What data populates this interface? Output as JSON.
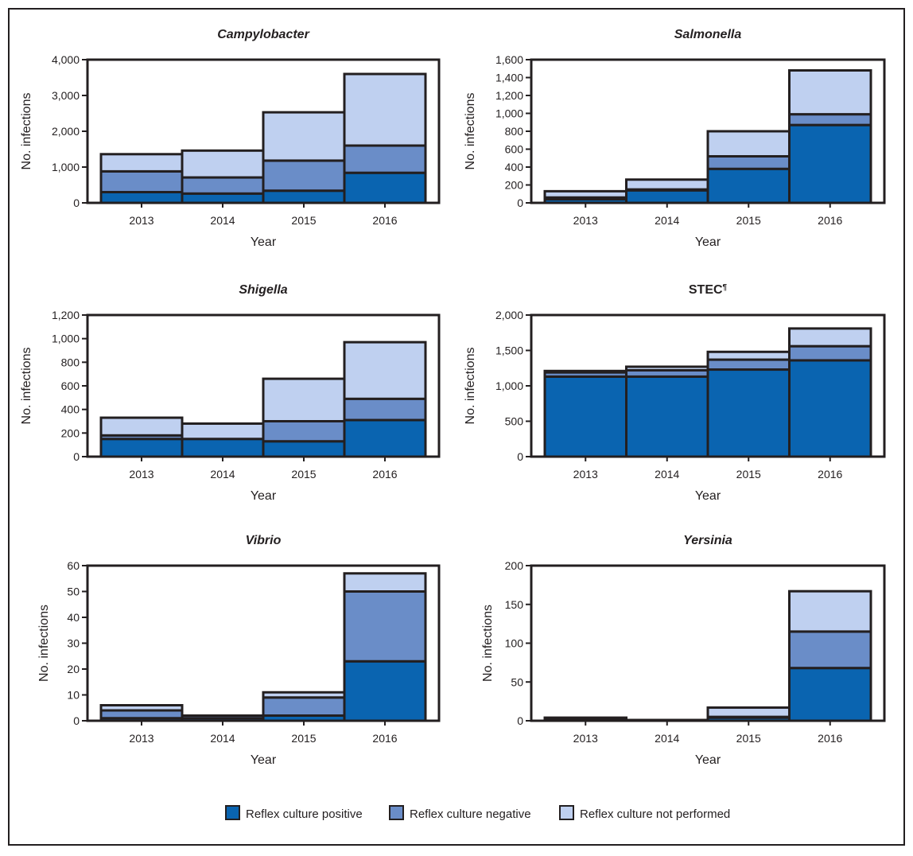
{
  "chart_data": [
    {
      "type": "bar",
      "stacked": true,
      "title": "Campylobacter",
      "title_italic": true,
      "xlabel": "Year",
      "ylabel": "No. infections",
      "categories": [
        "2013",
        "2014",
        "2015",
        "2016"
      ],
      "ylim": [
        0,
        4000
      ],
      "yticks": [
        0,
        1000,
        2000,
        3000,
        4000
      ],
      "series": [
        {
          "name": "Reflex culture positive",
          "values": [
            300,
            260,
            340,
            840
          ]
        },
        {
          "name": "Reflex culture negative",
          "values": [
            580,
            450,
            840,
            760
          ]
        },
        {
          "name": "Reflex culture not performed",
          "values": [
            480,
            750,
            1350,
            2000
          ]
        }
      ]
    },
    {
      "type": "bar",
      "stacked": true,
      "title": "Salmonella",
      "title_italic": true,
      "xlabel": "Year",
      "ylabel": "No. infections",
      "categories": [
        "2013",
        "2014",
        "2015",
        "2016"
      ],
      "ylim": [
        0,
        1600
      ],
      "yticks": [
        0,
        200,
        400,
        600,
        800,
        1000,
        1200,
        1400,
        1600
      ],
      "series": [
        {
          "name": "Reflex culture positive",
          "values": [
            40,
            140,
            380,
            870
          ]
        },
        {
          "name": "Reflex culture negative",
          "values": [
            20,
            10,
            140,
            120
          ]
        },
        {
          "name": "Reflex culture not performed",
          "values": [
            70,
            110,
            280,
            490
          ]
        }
      ]
    },
    {
      "type": "bar",
      "stacked": true,
      "title": "Shigella",
      "title_italic": true,
      "xlabel": "Year",
      "ylabel": "No. infections",
      "categories": [
        "2013",
        "2014",
        "2015",
        "2016"
      ],
      "ylim": [
        0,
        1200
      ],
      "yticks": [
        0,
        200,
        400,
        600,
        800,
        1000,
        1200
      ],
      "series": [
        {
          "name": "Reflex culture positive",
          "values": [
            150,
            150,
            130,
            310
          ]
        },
        {
          "name": "Reflex culture negative",
          "values": [
            30,
            0,
            170,
            180
          ]
        },
        {
          "name": "Reflex culture not performed",
          "values": [
            150,
            130,
            360,
            480
          ]
        }
      ]
    },
    {
      "type": "bar",
      "stacked": true,
      "title": "STEC",
      "title_sup": "¶",
      "title_italic": false,
      "xlabel": "Year",
      "ylabel": "No. infections",
      "categories": [
        "2013",
        "2014",
        "2015",
        "2016"
      ],
      "ylim": [
        0,
        2000
      ],
      "yticks": [
        0,
        500,
        1000,
        1500,
        2000
      ],
      "series": [
        {
          "name": "Reflex culture positive",
          "values": [
            1130,
            1130,
            1230,
            1360
          ]
        },
        {
          "name": "Reflex culture negative",
          "values": [
            60,
            90,
            140,
            200
          ]
        },
        {
          "name": "Reflex culture not performed",
          "values": [
            20,
            50,
            110,
            250
          ]
        }
      ]
    },
    {
      "type": "bar",
      "stacked": true,
      "title": "Vibrio",
      "title_italic": true,
      "xlabel": "Year",
      "ylabel": "No. infections",
      "categories": [
        "2013",
        "2014",
        "2015",
        "2016"
      ],
      "ylim": [
        0,
        60
      ],
      "yticks": [
        0,
        10,
        20,
        30,
        40,
        50,
        60
      ],
      "series": [
        {
          "name": "Reflex culture positive",
          "values": [
            1,
            1,
            2,
            23
          ]
        },
        {
          "name": "Reflex culture negative",
          "values": [
            3,
            1,
            7,
            27
          ]
        },
        {
          "name": "Reflex culture not performed",
          "values": [
            2,
            0,
            2,
            7
          ]
        }
      ]
    },
    {
      "type": "bar",
      "stacked": true,
      "title": "Yersinia",
      "title_italic": true,
      "xlabel": "Year",
      "ylabel": "No. infections",
      "categories": [
        "2013",
        "2014",
        "2015",
        "2016"
      ],
      "ylim": [
        0,
        200
      ],
      "yticks": [
        0,
        50,
        100,
        150,
        200
      ],
      "series": [
        {
          "name": "Reflex culture positive",
          "values": [
            3,
            1,
            4,
            68
          ]
        },
        {
          "name": "Reflex culture negative",
          "values": [
            1,
            0,
            1,
            47
          ]
        },
        {
          "name": "Reflex culture not performed",
          "values": [
            0,
            0,
            12,
            52
          ]
        }
      ]
    }
  ],
  "legend": {
    "position": "bottom",
    "items": [
      {
        "label": "Reflex culture positive",
        "color": "#0a64b0"
      },
      {
        "label": "Reflex culture negative",
        "color": "#6a8dc8"
      },
      {
        "label": "Reflex culture not performed",
        "color": "#bfd0f0"
      }
    ]
  }
}
